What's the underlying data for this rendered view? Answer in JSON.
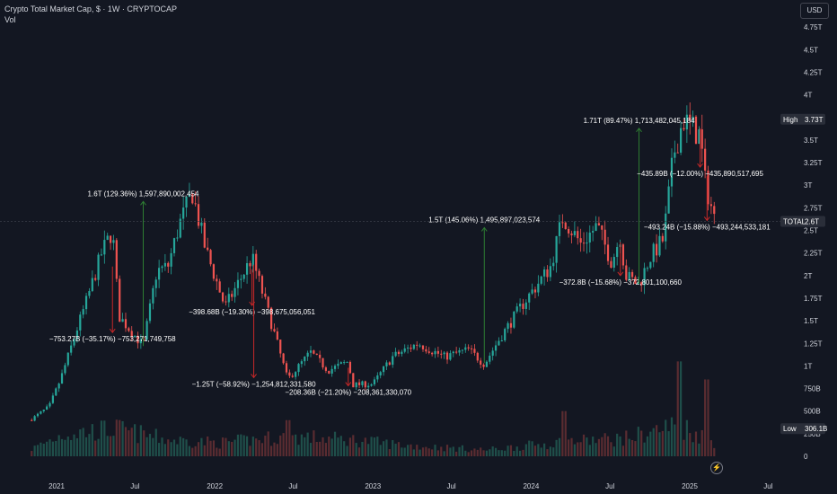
{
  "header": {
    "title": "Crypto Total Market Cap, $ · 1W · CRYPTOCAP",
    "sub": "Vol"
  },
  "currency": "USD",
  "colors": {
    "bg": "#131722",
    "up": "#26a69a",
    "down": "#ef5350",
    "upVol": "#1f4f4a",
    "downVol": "#5a2c31",
    "text": "#d1d4dc",
    "annot": "#ffffff",
    "arrowUp": "#2e7d32",
    "arrowDown": "#c62828"
  },
  "chart_data": {
    "type": "candlestick",
    "title": "Crypto Total Market Cap, $ · 1W · CRYPTOCAP",
    "y_ticks": [
      "4.75T",
      "4.5T",
      "4.25T",
      "4T",
      "3.75T",
      "3.5T",
      "3.25T",
      "3T",
      "2.75T",
      "2.5T",
      "2.25T",
      "2T",
      "1.75T",
      "1.5T",
      "1.25T",
      "1T",
      "750B",
      "500B",
      "250B",
      "0"
    ],
    "x_ticks": [
      "2021",
      "Jul",
      "2022",
      "Jul",
      "2023",
      "Jul",
      "2024",
      "Jul",
      "2025",
      "Jul"
    ],
    "ylim": [
      0,
      4.85
    ],
    "price_path": [
      [
        "2020-11-01",
        0.4
      ],
      [
        "2020-12-15",
        0.55
      ],
      [
        "2021-01-10",
        0.85
      ],
      [
        "2021-02-20",
        1.45
      ],
      [
        "2021-03-10",
        1.7
      ],
      [
        "2021-04-15",
        2.25
      ],
      [
        "2021-05-10",
        2.5
      ],
      [
        "2021-05-25",
        1.55
      ],
      [
        "2021-07-20",
        1.22
      ],
      [
        "2021-08-20",
        2.05
      ],
      [
        "2021-09-15",
        2.1
      ],
      [
        "2021-10-10",
        2.55
      ],
      [
        "2021-11-10",
        2.92
      ],
      [
        "2021-12-10",
        2.3
      ],
      [
        "2022-01-25",
        1.65
      ],
      [
        "2022-03-28",
        2.2
      ],
      [
        "2022-05-10",
        1.5
      ],
      [
        "2022-06-18",
        0.85
      ],
      [
        "2022-08-10",
        1.15
      ],
      [
        "2022-09-20",
        0.95
      ],
      [
        "2022-11-05",
        1.05
      ],
      [
        "2022-11-15",
        0.79
      ],
      [
        "2023-01-01",
        0.8
      ],
      [
        "2023-02-15",
        1.1
      ],
      [
        "2023-04-15",
        1.25
      ],
      [
        "2023-06-15",
        1.1
      ],
      [
        "2023-08-10",
        1.18
      ],
      [
        "2023-09-15",
        1.02
      ],
      [
        "2023-10-20",
        1.3
      ],
      [
        "2023-12-15",
        1.7
      ],
      [
        "2024-02-15",
        2.1
      ],
      [
        "2024-03-14",
        2.65
      ],
      [
        "2024-04-25",
        2.35
      ],
      [
        "2024-06-01",
        2.55
      ],
      [
        "2024-07-05",
        2.15
      ],
      [
        "2024-07-25",
        2.45
      ],
      [
        "2024-08-05",
        2.0
      ],
      [
        "2024-09-06",
        1.9
      ],
      [
        "2024-10-01",
        2.2
      ],
      [
        "2024-11-01",
        2.4
      ],
      [
        "2024-11-25",
        3.35
      ],
      [
        "2024-12-17",
        3.73
      ],
      [
        "2025-01-25",
        3.55
      ],
      [
        "2025-02-05",
        3.05
      ],
      [
        "2025-02-28",
        2.6
      ]
    ],
    "volume_profile": [
      [
        "2020-11-01",
        0.08
      ],
      [
        "2021-01-15",
        0.25
      ],
      [
        "2021-05-15",
        0.3
      ],
      [
        "2021-09-15",
        0.18
      ],
      [
        "2022-01-15",
        0.15
      ],
      [
        "2022-06-15",
        0.22
      ],
      [
        "2022-11-15",
        0.18
      ],
      [
        "2023-03-15",
        0.12
      ],
      [
        "2023-09-15",
        0.07
      ],
      [
        "2024-03-15",
        0.16
      ],
      [
        "2024-08-05",
        0.2
      ],
      [
        "2024-12-01",
        0.35
      ],
      [
        "2025-02-28",
        0.15
      ]
    ],
    "volume_spikes": [
      [
        "2022-06-18",
        0.4
      ],
      [
        "2024-12-03",
        1.05
      ],
      [
        "2025-02-03",
        0.85
      ],
      [
        "2024-03-11",
        0.5
      ]
    ],
    "high_label": "High",
    "high_value": "3.73T",
    "low_label": "Low",
    "low_value": "306.1B",
    "last_label": "TOTAL",
    "last_value": "2.6T",
    "measures": [
      {
        "text": "1.6T (129.36%) 1,597,890,002,454",
        "from": [
          "2021-07-20",
          1.22
        ],
        "to": [
          "2021-07-20",
          2.82
        ],
        "dir": "up"
      },
      {
        "text": "−753.27B (−35.17%) −753,271,749,758",
        "from": [
          "2021-05-10",
          2.1
        ],
        "to": [
          "2021-05-10",
          1.37
        ],
        "dir": "down"
      },
      {
        "text": "−398.68B (−19.30%) −398,675,056,051",
        "from": [
          "2022-03-28",
          2.07
        ],
        "to": [
          "2022-03-28",
          1.67
        ],
        "dir": "down"
      },
      {
        "text": "−1.25T (−58.92%) −1,254,812,331,580",
        "from": [
          "2022-04-01",
          2.12
        ],
        "to": [
          "2022-04-01",
          0.87
        ],
        "dir": "down"
      },
      {
        "text": "−208.36B (−21.20%) −208,361,330,070",
        "from": [
          "2022-11-05",
          0.98
        ],
        "to": [
          "2022-11-05",
          0.78
        ],
        "dir": "down"
      },
      {
        "text": "1.5T (145.06%) 1,495,897,023,574",
        "from": [
          "2023-09-15",
          1.03
        ],
        "to": [
          "2023-09-15",
          2.53
        ],
        "dir": "up"
      },
      {
        "text": "−372.8B (−15.68%) −372,801,100,660",
        "from": [
          "2024-07-25",
          2.37
        ],
        "to": [
          "2024-07-25",
          2.0
        ],
        "dir": "down"
      },
      {
        "text": "1.71T (89.47%) 1,713,482,045,184",
        "from": [
          "2024-09-06",
          1.91
        ],
        "to": [
          "2024-09-06",
          3.63
        ],
        "dir": "up"
      },
      {
        "text": "−435.89B (−12.00%) −435,890,517,695",
        "from": [
          "2025-01-25",
          3.63
        ],
        "to": [
          "2025-01-25",
          3.2
        ],
        "dir": "down"
      },
      {
        "text": "−493.24B (−15.88%) −493,244,533,181",
        "from": [
          "2025-02-10",
          3.1
        ],
        "to": [
          "2025-02-10",
          2.61
        ],
        "dir": "down"
      }
    ]
  }
}
